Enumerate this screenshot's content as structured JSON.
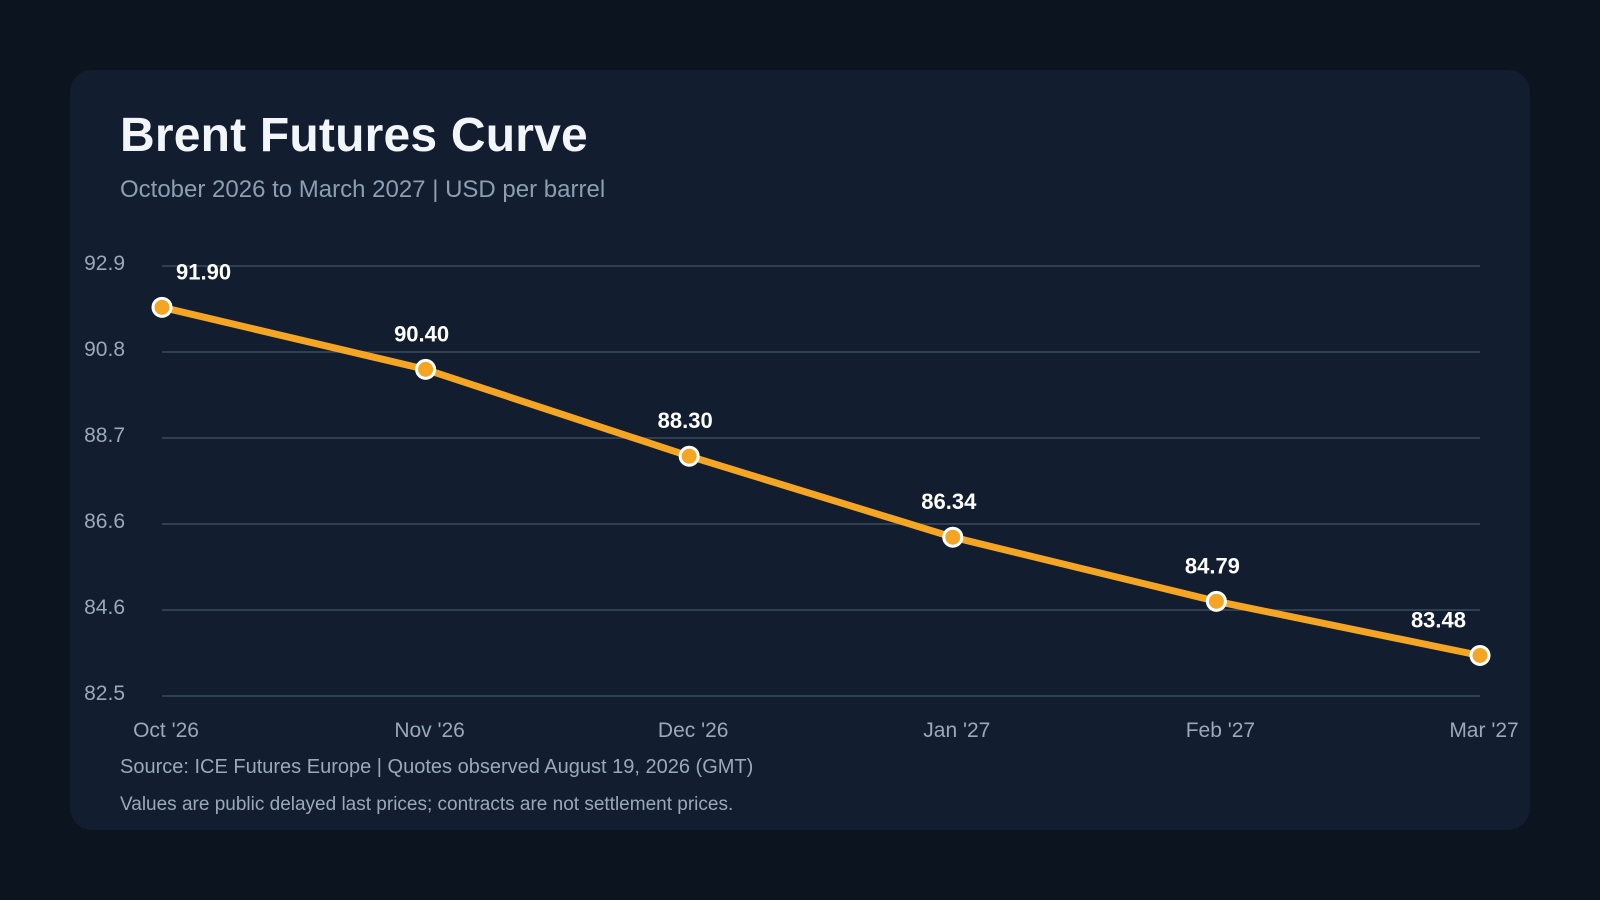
{
  "header": {
    "title": "Brent Futures Curve",
    "subtitle": "October 2026 to March 2027 | USD per barrel"
  },
  "footer": {
    "source": "Source: ICE Futures Europe | Quotes observed August 19, 2026 (GMT)",
    "note": "Values are public delayed last prices; contracts are not settlement prices."
  },
  "colors": {
    "background": "#0b141f",
    "card": "#121e30",
    "line": "#f5a524",
    "grid": "#3a4b5e",
    "tick_text": "#9aa8ba",
    "label_text": "#ffffff"
  },
  "chart_data": {
    "type": "line",
    "title": "Brent Futures Curve",
    "subtitle": "October 2026 to March 2027 | USD per barrel",
    "categories": [
      "Oct '26",
      "Nov '26",
      "Dec '26",
      "Jan '27",
      "Feb '27",
      "Mar '27"
    ],
    "series": [
      {
        "values": [
          91.9,
          90.4,
          88.3,
          86.34,
          84.79,
          83.48
        ],
        "data_labels": [
          "91.90",
          "90.40",
          "88.30",
          "86.34",
          "84.79",
          "83.48"
        ]
      }
    ],
    "y_ticks": [
      "92.9",
      "90.8",
      "88.7",
      "86.6",
      "84.6",
      "82.5"
    ],
    "ylim": [
      82.5,
      92.9
    ],
    "grid": true,
    "legend": false
  }
}
